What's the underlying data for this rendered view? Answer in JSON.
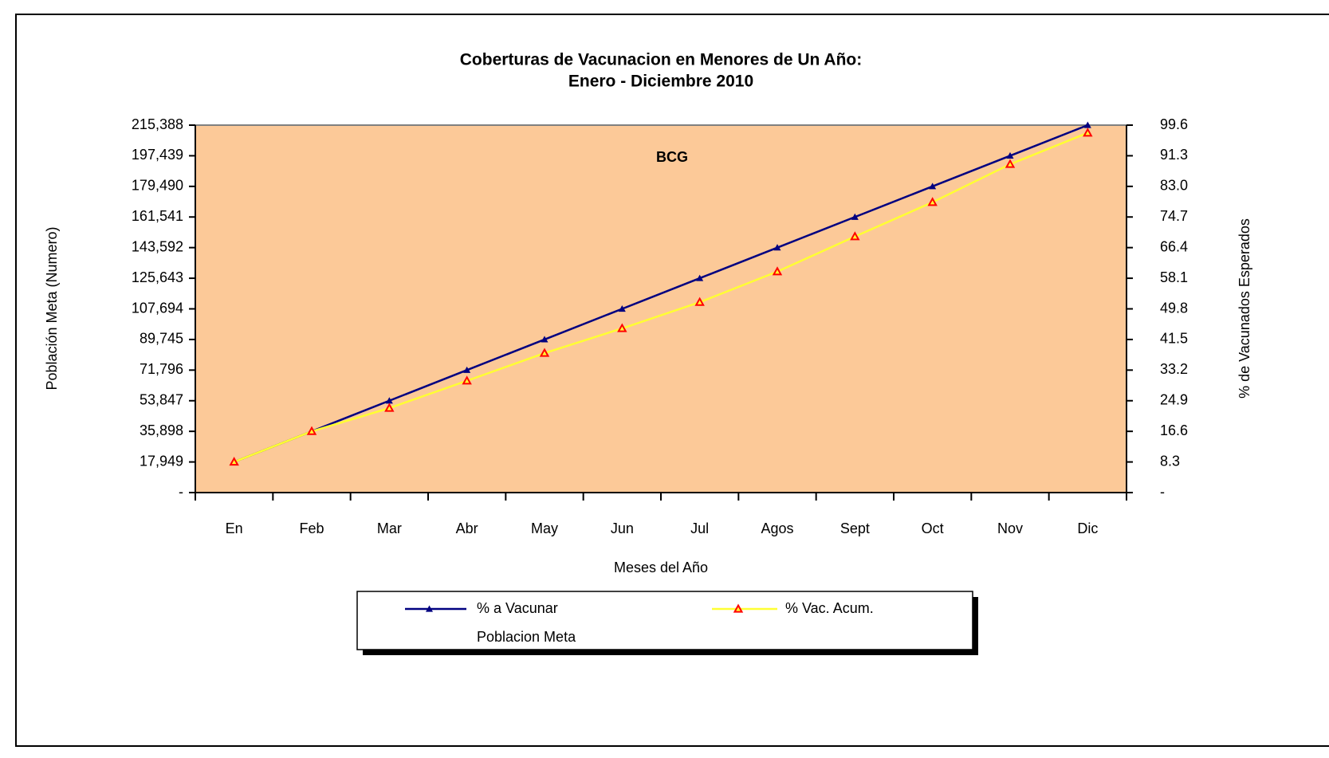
{
  "chart_data": {
    "type": "line",
    "title": "Coberturas de Vacunacion en Menores de Un Año:",
    "subtitle": "Enero - Diciembre 2010",
    "annotation": "BCG",
    "x_label": "Meses del Año",
    "y_label": "Población Meta (Numero)",
    "y2_label": "% de Vacunados Esperados",
    "categories": [
      "En",
      "Feb",
      "Mar",
      "Abr",
      "May",
      "Jun",
      "Jul",
      "Agos",
      "Sept",
      "Oct",
      "Nov",
      "Dic"
    ],
    "series": [
      {
        "name": "% a Vacunar",
        "color": "#000080",
        "marker_color": "#000080",
        "axis": "y2",
        "values": [
          8.3,
          16.6,
          24.9,
          33.2,
          41.5,
          49.8,
          58.1,
          66.4,
          74.7,
          83.0,
          91.3,
          99.6
        ]
      },
      {
        "name": "% Vac. Acum.",
        "color": "#ffff33",
        "marker_color": "#ff0000",
        "axis": "y2",
        "values": [
          8.3,
          16.6,
          22.9,
          30.3,
          37.8,
          44.5,
          51.6,
          59.9,
          69.4,
          78.7,
          89.0,
          97.5
        ]
      }
    ],
    "legend_text": "Poblacion Meta",
    "ylim": [
      0,
      215388
    ],
    "yticks": [
      {
        "value": 0,
        "label": "-"
      },
      {
        "value": 17949,
        "label": "17,949"
      },
      {
        "value": 35898,
        "label": "35,898"
      },
      {
        "value": 53847,
        "label": "53,847"
      },
      {
        "value": 71796,
        "label": "71,796"
      },
      {
        "value": 89745,
        "label": "89,745"
      },
      {
        "value": 107694,
        "label": "107,694"
      },
      {
        "value": 125643,
        "label": "125,643"
      },
      {
        "value": 143592,
        "label": "143,592"
      },
      {
        "value": 161541,
        "label": "161,541"
      },
      {
        "value": 179490,
        "label": "179,490"
      },
      {
        "value": 197439,
        "label": "197,439"
      },
      {
        "value": 215388,
        "label": "215,388"
      }
    ],
    "y2lim": [
      0,
      99.6
    ],
    "y2ticks": [
      {
        "value": 0,
        "label": "-"
      },
      8.3,
      16.6,
      24.9,
      33.2,
      41.5,
      49.8,
      58.1,
      66.4,
      74.7,
      {
        "value": 83.0,
        "label": "83.0"
      },
      91.3,
      99.6
    ],
    "plot_color": "#fcc998"
  }
}
